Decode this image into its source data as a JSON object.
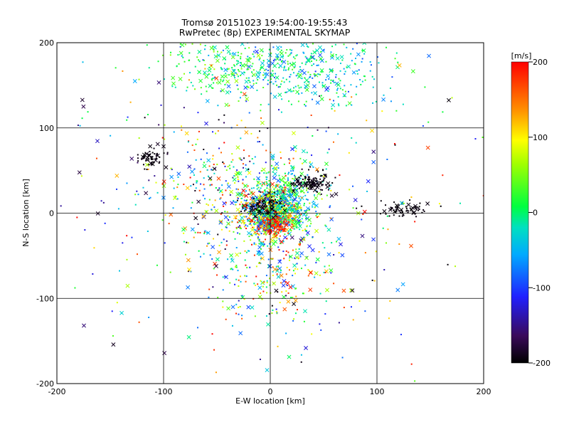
{
  "chart_data": {
    "type": "scatter",
    "title": "Tromsø 20151023 19:54:00-19:55:43",
    "subtitle": "RwPretec (8p) EXPERIMENTAL SKYMAP",
    "xlabel": "E-W location [km]",
    "ylabel": "N-S location [km]",
    "xlim": [
      -200,
      200
    ],
    "ylim": [
      -200,
      200
    ],
    "xticks": [
      -200,
      -100,
      0,
      100,
      200
    ],
    "yticks": [
      -200,
      -100,
      0,
      100,
      200
    ],
    "grid": true,
    "colorbar": {
      "label": "[m/s]",
      "range": [
        -200,
        200
      ],
      "ticks": [
        200,
        100,
        0,
        -100,
        -200
      ],
      "colormap": "black-purple-blue-cyan-green-yellow-orange-red"
    },
    "markers": {
      "small": "dot",
      "large": "x"
    },
    "clusters": [
      {
        "x": 0,
        "y": 0,
        "sx": 14,
        "sy": 14,
        "n": 700,
        "vmin": -120,
        "vmax": 200
      },
      {
        "x": 5,
        "y": -12,
        "sx": 6,
        "sy": 6,
        "n": 140,
        "vmin": 170,
        "vmax": 200
      },
      {
        "x": 15,
        "y": 18,
        "sx": 14,
        "sy": 18,
        "n": 350,
        "vmin": -90,
        "vmax": 60
      },
      {
        "x": 40,
        "y": 35,
        "sx": 9,
        "sy": 6,
        "n": 120,
        "vmin": -200,
        "vmax": -185
      },
      {
        "x": -5,
        "y": 8,
        "sx": 9,
        "sy": 6,
        "n": 100,
        "vmin": -200,
        "vmax": -185
      },
      {
        "x": 25,
        "y": 170,
        "sx": 45,
        "sy": 22,
        "n": 420,
        "vmin": -110,
        "vmax": 40
      },
      {
        "x": -40,
        "y": 170,
        "sx": 30,
        "sy": 20,
        "n": 160,
        "vmin": -20,
        "vmax": 70
      },
      {
        "x": -112,
        "y": 65,
        "sx": 6,
        "sy": 6,
        "n": 60,
        "vmin": -200,
        "vmax": -190
      },
      {
        "x": 125,
        "y": 5,
        "sx": 12,
        "sy": 4,
        "n": 70,
        "vmin": -200,
        "vmax": -190
      },
      {
        "x": -40,
        "y": 30,
        "sx": 40,
        "sy": 40,
        "n": 280,
        "vmin": -200,
        "vmax": 200
      },
      {
        "x": 5,
        "y": -55,
        "sx": 30,
        "sy": 35,
        "n": 280,
        "vmin": -120,
        "vmax": 200
      },
      {
        "x": 0,
        "y": 0,
        "sx": 95,
        "sy": 95,
        "n": 380,
        "vmin": -200,
        "vmax": 200
      }
    ]
  }
}
